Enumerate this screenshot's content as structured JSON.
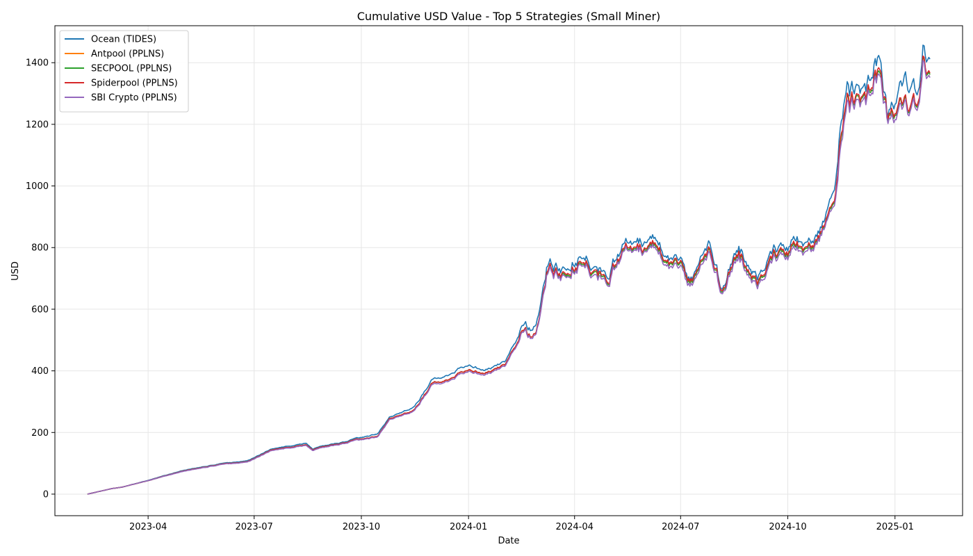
{
  "chart_data": {
    "type": "line",
    "title": "Cumulative USD Value - Top 5 Strategies (Small Miner)",
    "xlabel": "Date",
    "ylabel": "USD",
    "xlim": [
      "2023-01-11",
      "2025-02-28"
    ],
    "ylim": [
      -70,
      1520
    ],
    "x_ticks": [
      "2023-04",
      "2023-07",
      "2023-10",
      "2024-01",
      "2024-04",
      "2024-07",
      "2024-10",
      "2025-01"
    ],
    "y_ticks": [
      0,
      200,
      400,
      600,
      800,
      1000,
      1200,
      1400
    ],
    "grid": true,
    "legend_position": "top-left",
    "colors": {
      "Ocean (TIDES)": "#1f77b4",
      "Antpool (PPLNS)": "#ff7f0e",
      "SECPOOL (PPLNS)": "#2ca02c",
      "Spiderpool (PPLNS)": "#d62728",
      "SBI Crypto (PPLNS)": "#9467bd"
    },
    "x": [
      "2023-02-08",
      "2023-03-01",
      "2023-03-10",
      "2023-04-01",
      "2023-05-01",
      "2023-06-01",
      "2023-06-25",
      "2023-07-15",
      "2023-08-15",
      "2023-08-20",
      "2023-09-01",
      "2023-09-20",
      "2023-10-15",
      "2023-10-25",
      "2023-11-15",
      "2023-12-01",
      "2023-12-15",
      "2024-01-01",
      "2024-01-15",
      "2024-02-01",
      "2024-02-15",
      "2024-02-28",
      "2024-03-10",
      "2024-03-20",
      "2024-04-01",
      "2024-04-10",
      "2024-04-20",
      "2024-05-01",
      "2024-05-15",
      "2024-06-01",
      "2024-06-15",
      "2024-07-01",
      "2024-07-10",
      "2024-07-25",
      "2024-08-05",
      "2024-08-20",
      "2024-09-05",
      "2024-09-25",
      "2024-10-15",
      "2024-11-01",
      "2024-11-10",
      "2024-11-15",
      "2024-11-22",
      "2024-12-05",
      "2024-12-18",
      "2024-12-25",
      "2025-01-01",
      "2025-01-10",
      "2025-01-20",
      "2025-01-25",
      "2025-01-31"
    ],
    "series": [
      {
        "name": "Ocean (TIDES)",
        "values": [
          0,
          18,
          23,
          45,
          77,
          98,
          107,
          145,
          165,
          148,
          158,
          173,
          196,
          250,
          280,
          372,
          390,
          420,
          400,
          430,
          525,
          545,
          770,
          720,
          770,
          780,
          705,
          730,
          820,
          825,
          810,
          745,
          700,
          835,
          665,
          800,
          720,
          810,
          820,
          880,
          960,
          1190,
          1300,
          1270,
          1420,
          1260,
          1270,
          1380,
          1290,
          1440,
          1420
        ]
      },
      {
        "name": "Antpool (PPLNS)",
        "values": [
          0,
          18,
          23,
          44,
          75,
          96,
          104,
          142,
          160,
          145,
          155,
          170,
          188,
          245,
          270,
          360,
          375,
          405,
          390,
          420,
          510,
          520,
          750,
          700,
          750,
          760,
          690,
          710,
          800,
          800,
          790,
          730,
          690,
          810,
          655,
          780,
          700,
          790,
          800,
          860,
          920,
          1140,
          1260,
          1240,
          1370,
          1250,
          1235,
          1300,
          1250,
          1400,
          1370
        ]
      },
      {
        "name": "SECPOOL (PPLNS)",
        "values": [
          0,
          18,
          23,
          44,
          75,
          96,
          104,
          142,
          160,
          145,
          155,
          170,
          188,
          245,
          270,
          360,
          375,
          405,
          390,
          420,
          510,
          520,
          750,
          700,
          750,
          760,
          690,
          710,
          800,
          800,
          790,
          730,
          690,
          810,
          655,
          780,
          700,
          790,
          800,
          860,
          920,
          1140,
          1260,
          1240,
          1370,
          1250,
          1235,
          1300,
          1250,
          1400,
          1370
        ]
      },
      {
        "name": "Spiderpool (PPLNS)",
        "values": [
          0,
          18,
          23,
          44,
          75,
          96,
          104,
          142,
          160,
          145,
          155,
          170,
          188,
          245,
          270,
          360,
          375,
          405,
          390,
          420,
          510,
          520,
          755,
          705,
          755,
          765,
          695,
          715,
          805,
          805,
          795,
          735,
          695,
          815,
          660,
          785,
          705,
          795,
          805,
          865,
          925,
          1150,
          1265,
          1245,
          1380,
          1255,
          1240,
          1305,
          1255,
          1405,
          1375
        ]
      },
      {
        "name": "SBI Crypto (PPLNS)",
        "values": [
          0,
          18,
          23,
          44,
          74,
          95,
          103,
          140,
          158,
          143,
          153,
          168,
          186,
          242,
          267,
          355,
          370,
          400,
          385,
          415,
          505,
          515,
          745,
          695,
          745,
          755,
          680,
          705,
          795,
          795,
          780,
          720,
          680,
          800,
          650,
          770,
          690,
          780,
          790,
          855,
          910,
          1120,
          1245,
          1230,
          1360,
          1240,
          1220,
          1290,
          1240,
          1390,
          1360
        ]
      }
    ]
  }
}
